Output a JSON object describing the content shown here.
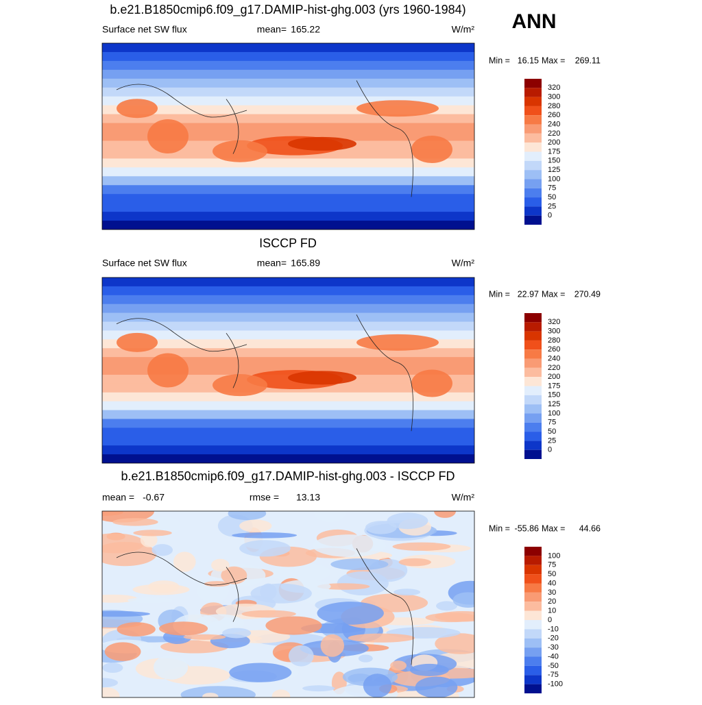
{
  "header": {
    "season": "ANN"
  },
  "panels": [
    {
      "title": "b.e21.B1850cmip6.f09_g17.DAMIP-hist-ghg.003 (yrs 1960-1984)",
      "left_label": "Surface net SW flux",
      "stat_label": "mean=",
      "stat": 165.22,
      "units": "W/m²",
      "min_label": "Min =",
      "min": 16.15,
      "max_label": "Max =",
      "max": 269.11,
      "colorbar": {
        "levels": [
          320,
          300,
          280,
          260,
          240,
          220,
          200,
          175,
          150,
          125,
          100,
          75,
          50,
          25,
          0
        ],
        "colors": [
          "#8c0000",
          "#b81b00",
          "#d93500",
          "#f0501a",
          "#f77a45",
          "#f99b74",
          "#fcbc9f",
          "#fde6d6",
          "#e2eefc",
          "#c2d8f9",
          "#9dbff5",
          "#76a0f1",
          "#4c7eee",
          "#2a5ee8",
          "#0d36c9",
          "#00108f"
        ]
      }
    },
    {
      "title": "ISCCP FD",
      "left_label": "Surface net SW flux",
      "stat_label": "mean=",
      "stat": 165.89,
      "units": "W/m²",
      "min_label": "Min =",
      "min": 22.97,
      "max_label": "Max =",
      "max": 270.49,
      "colorbar": {
        "levels": [
          320,
          300,
          280,
          260,
          240,
          220,
          200,
          175,
          150,
          125,
          100,
          75,
          50,
          25,
          0
        ],
        "colors": [
          "#8c0000",
          "#b81b00",
          "#d93500",
          "#f0501a",
          "#f77a45",
          "#f99b74",
          "#fcbc9f",
          "#fde6d6",
          "#e2eefc",
          "#c2d8f9",
          "#9dbff5",
          "#76a0f1",
          "#4c7eee",
          "#2a5ee8",
          "#0d36c9",
          "#00108f"
        ]
      }
    },
    {
      "title": "b.e21.B1850cmip6.f09_g17.DAMIP-hist-ghg.003 - ISCCP FD",
      "left_label": "mean =",
      "left_value": -0.67,
      "stat_label": "rmse =",
      "stat": 13.13,
      "units": "W/m²",
      "min_label": "Min =",
      "min": -55.86,
      "max_label": "Max =",
      "max": 44.66,
      "colorbar": {
        "levels": [
          100,
          75,
          50,
          40,
          30,
          20,
          10,
          0,
          -10,
          -20,
          -30,
          -40,
          -50,
          -75,
          -100
        ],
        "colors": [
          "#8c0000",
          "#b81b00",
          "#d93500",
          "#f0501a",
          "#f77a45",
          "#f99b74",
          "#fcbc9f",
          "#fde6d6",
          "#e2eefc",
          "#c2d8f9",
          "#9dbff5",
          "#76a0f1",
          "#4c7eee",
          "#2a5ee8",
          "#0d36c9",
          "#00108f"
        ]
      }
    }
  ]
}
